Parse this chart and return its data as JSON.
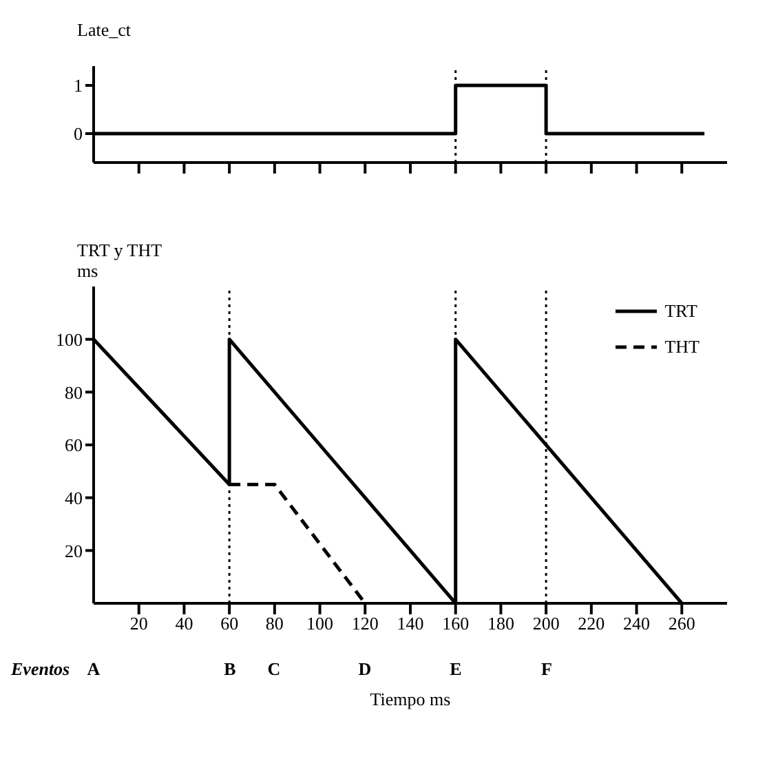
{
  "chart_data": [
    {
      "type": "step",
      "ylabel": "Late_ct",
      "xlim": [
        0,
        280
      ],
      "xticks": [
        {
          "value": 20,
          "label": null
        },
        {
          "value": 40,
          "label": null
        },
        {
          "value": 60,
          "label": null
        },
        {
          "value": 80,
          "label": null
        },
        {
          "value": 100,
          "label": null
        },
        {
          "value": 120,
          "label": null
        },
        {
          "value": 140,
          "label": null
        },
        {
          "value": 160,
          "label": null
        },
        {
          "value": 180,
          "label": null
        },
        {
          "value": 200,
          "label": null
        },
        {
          "value": 220,
          "label": null
        },
        {
          "value": 240,
          "label": null
        },
        {
          "value": 260,
          "label": null
        }
      ],
      "ylim": [
        -0.6,
        1.4
      ],
      "yticks": [
        0,
        1
      ],
      "tick_labels": "y",
      "grid": false,
      "legend": false,
      "series": [
        {
          "color": "#000000",
          "x": [
            0,
            160,
            200,
            270
          ],
          "values": [
            0,
            1,
            0,
            0
          ]
        }
      ],
      "ref_lines": [
        {
          "axis": "x",
          "value": 160,
          "line_style": "dotted"
        },
        {
          "axis": "x",
          "value": 200,
          "line_style": "dotted"
        }
      ]
    },
    {
      "type": "line",
      "ylabel": "TRT y THT ms",
      "xlabel": "Tiempo ms",
      "xlim": [
        0,
        280
      ],
      "xticks": [
        20,
        40,
        60,
        80,
        100,
        120,
        140,
        160,
        180,
        200,
        220,
        240,
        260
      ],
      "ylim": [
        0,
        120
      ],
      "yticks": [
        20,
        40,
        60,
        80,
        100
      ],
      "grid": false,
      "legend": "top right",
      "marker": "none",
      "series": [
        {
          "name": "TRT",
          "color": "#000000",
          "line_style": "solid",
          "x": [
            0,
            60,
            60,
            160,
            160,
            260
          ],
          "values": [
            100,
            45,
            100,
            0,
            100,
            0
          ]
        },
        {
          "name": "THT",
          "color": "#000000",
          "line_style": "dashed",
          "x": [
            60,
            80,
            120
          ],
          "values": [
            45,
            45,
            0
          ]
        }
      ],
      "ref_lines": [
        {
          "axis": "x",
          "value": 60,
          "line_style": "dotted"
        },
        {
          "axis": "x",
          "value": 160,
          "line_style": "dotted"
        },
        {
          "axis": "x",
          "value": 200,
          "line_style": "dotted"
        }
      ],
      "annotations": [
        "Eventos",
        "A",
        "B",
        "C",
        "D",
        "E",
        "F"
      ]
    }
  ]
}
